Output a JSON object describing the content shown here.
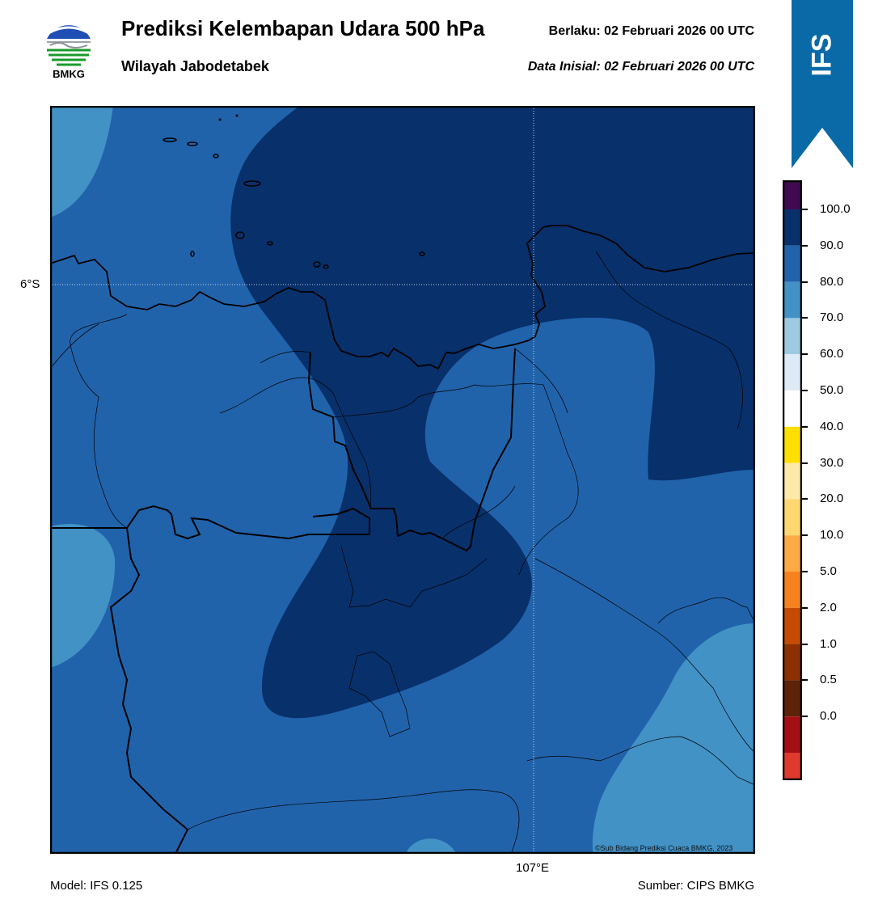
{
  "header": {
    "title": "Prediksi Kelembapan Udara 500 hPa",
    "subtitle": "Wilayah Jabodetabek",
    "valid_label": "Berlaku:  02 Februari 2026 00 UTC",
    "init_label": "Data Inisial:  02 Februari 2026 00 UTC"
  },
  "logo": {
    "text": "BMKG",
    "icon": "bmkg-logo-icon"
  },
  "ribbon": {
    "text": "IFS",
    "color": "#0a6aa8"
  },
  "map": {
    "lat_label": "6°S",
    "lon_label": "107°E",
    "copyright": "©Sub Bidang Prediksi Cuaca BMKG, 2023",
    "fill_colors": {
      "70-80": "#4292c6",
      "80-90": "#2163ab",
      "90-100": "#08306b"
    }
  },
  "colorbar": {
    "ticks": [
      "100.0",
      "90.0",
      "80.0",
      "70.0",
      "60.0",
      "50.0",
      "40.0",
      "30.0",
      "20.0",
      "10.0",
      "5.0",
      "2.0",
      "1.0",
      "0.5",
      "0.0"
    ],
    "colors_top_to_bottom": [
      "#3f0a4f",
      "#08306b",
      "#2163ab",
      "#4292c6",
      "#9ecae1",
      "#deebf7",
      "#ffffff",
      "#ffe000",
      "#ffe9a8",
      "#ffd770",
      "#fcaa45",
      "#f5821f",
      "#c54b02",
      "#8c3003",
      "#5c2308",
      "#a30f15",
      "#e03a2e"
    ]
  },
  "footer": {
    "model": "Model: IFS 0.125",
    "source": "Sumber: CIPS BMKG"
  }
}
